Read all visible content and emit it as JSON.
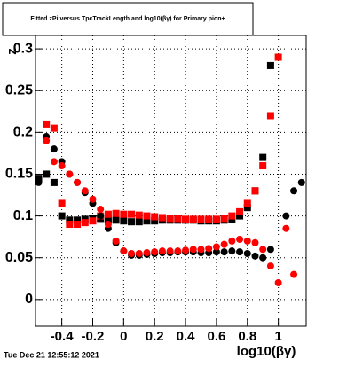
{
  "chart_data": {
    "type": "scatter",
    "title": "Fitted zPi versus TpcTrackLength and log10(βγ) for Primary pion+",
    "x_label": "log10(βγ)",
    "y_label": "z",
    "footer": "Tue Dec 21 12:55:12 2021",
    "x": [
      -0.55,
      -0.5,
      -0.45,
      -0.4,
      -0.35,
      -0.3,
      -0.25,
      -0.2,
      -0.15,
      -0.1,
      -0.05,
      0,
      0.05,
      0.1,
      0.15,
      0.2,
      0.25,
      0.3,
      0.35,
      0.4,
      0.45,
      0.5,
      0.55,
      0.6,
      0.65,
      0.7,
      0.75,
      0.8,
      0.85,
      0.9,
      0.95,
      1,
      1.05,
      1.1,
      1.15
    ],
    "series": [
      {
        "color": "#000000",
        "marker": "square",
        "values": [
          0.145,
          0.15,
          0.14,
          0.1,
          0.095,
          0.095,
          0.096,
          0.097,
          0.097,
          0.096,
          0.095,
          0.094,
          0.093,
          0.093,
          0.094,
          0.094,
          0.095,
          0.095,
          0.095,
          0.095,
          0.095,
          0.094,
          0.094,
          0.094,
          0.095,
          0.096,
          0.1,
          0.11,
          0.13,
          0.17,
          0.28,
          null,
          null,
          null,
          null
        ]
      },
      {
        "color": "#ff0000",
        "marker": "square",
        "values": [
          null,
          0.21,
          0.205,
          0.115,
          0.09,
          0.09,
          0.092,
          0.094,
          0.1,
          0.102,
          0.103,
          0.102,
          0.102,
          0.101,
          0.1,
          0.099,
          0.098,
          0.097,
          0.097,
          0.096,
          0.096,
          0.096,
          0.096,
          0.096,
          0.097,
          0.1,
          0.105,
          0.115,
          0.13,
          0.16,
          0.22,
          0.29,
          null,
          null,
          null
        ]
      },
      {
        "color": "#000000",
        "marker": "circle",
        "values": [
          0.14,
          0.195,
          0.18,
          0.165,
          0.15,
          0.14,
          0.128,
          0.115,
          0.1,
          0.085,
          0.068,
          0.058,
          0.053,
          0.053,
          0.054,
          0.055,
          0.056,
          0.056,
          0.057,
          0.057,
          0.057,
          0.056,
          0.056,
          0.057,
          0.057,
          0.058,
          0.057,
          0.055,
          0.052,
          0.05,
          0.06,
          null,
          0.1,
          0.13,
          0.14
        ]
      },
      {
        "color": "#ff0000",
        "marker": "circle",
        "values": [
          null,
          0.19,
          0.165,
          0.16,
          0.15,
          0.14,
          0.13,
          0.12,
          0.108,
          0.09,
          0.07,
          0.058,
          0.055,
          0.055,
          0.056,
          0.057,
          0.058,
          0.058,
          0.058,
          0.059,
          0.06,
          0.06,
          0.061,
          0.063,
          0.066,
          0.07,
          0.072,
          0.07,
          0.068,
          0.06,
          0.04,
          0.02,
          0.085,
          0.03,
          null
        ]
      }
    ],
    "xlim": [
      -0.57,
      1.18
    ],
    "ylim": [
      -0.032,
      0.316
    ],
    "xticks": [
      -0.4,
      -0.2,
      0,
      0.2,
      0.4,
      0.6,
      0.8,
      1
    ],
    "yticks": [
      0,
      0.05,
      0.1,
      0.15,
      0.2,
      0.25,
      0.3
    ],
    "grid": true
  }
}
